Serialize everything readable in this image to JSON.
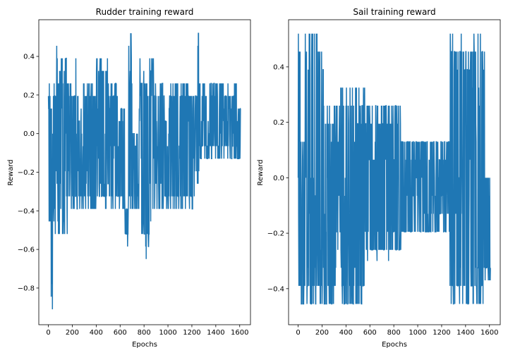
{
  "chart_data": [
    {
      "type": "line",
      "title": "Rudder training reward",
      "xlabel": "Epochs",
      "ylabel": "Reward",
      "xlim": [
        -80,
        1690
      ],
      "ylim": [
        -0.99,
        0.59
      ],
      "xticks": [
        0,
        200,
        400,
        600,
        800,
        1000,
        1200,
        1400,
        1600
      ],
      "yticks": [
        -0.8,
        -0.6,
        -0.4,
        -0.2,
        0.0,
        0.2,
        0.4
      ],
      "xtick_labels": [
        "0",
        "200",
        "400",
        "600",
        "800",
        "1000",
        "1200",
        "1400",
        "1600"
      ],
      "ytick_labels": [
        "−0.8",
        "−0.6",
        "−0.4",
        "−0.2",
        "0.0",
        "0.2",
        "0.4"
      ],
      "color": "#1f77b4",
      "segments": [
        {
          "x0": 0,
          "x1": 20,
          "min": -0.52,
          "max": 0.26
        },
        {
          "x0": 20,
          "x1": 40,
          "min": -0.92,
          "max": 0.13
        },
        {
          "x0": 40,
          "x1": 70,
          "min": -0.52,
          "max": 0.26
        },
        {
          "x0": 70,
          "x1": 80,
          "min": -0.39,
          "max": 0.52
        },
        {
          "x0": 80,
          "x1": 160,
          "min": -0.52,
          "max": 0.39
        },
        {
          "x0": 160,
          "x1": 230,
          "min": -0.39,
          "max": 0.26
        },
        {
          "x0": 230,
          "x1": 240,
          "min": -0.39,
          "max": 0.52
        },
        {
          "x0": 240,
          "x1": 400,
          "min": -0.39,
          "max": 0.26
        },
        {
          "x0": 400,
          "x1": 500,
          "min": -0.39,
          "max": 0.39
        },
        {
          "x0": 500,
          "x1": 590,
          "min": -0.39,
          "max": 0.26
        },
        {
          "x0": 590,
          "x1": 640,
          "min": -0.39,
          "max": 0.13
        },
        {
          "x0": 640,
          "x1": 660,
          "min": -0.52,
          "max": -0.39
        },
        {
          "x0": 660,
          "x1": 670,
          "min": -0.65,
          "max": -0.39
        },
        {
          "x0": 670,
          "x1": 700,
          "min": -0.39,
          "max": 0.52
        },
        {
          "x0": 700,
          "x1": 760,
          "min": -0.39,
          "max": 0.0
        },
        {
          "x0": 760,
          "x1": 800,
          "min": -0.52,
          "max": 0.39
        },
        {
          "x0": 800,
          "x1": 840,
          "min": -0.65,
          "max": 0.26
        },
        {
          "x0": 840,
          "x1": 880,
          "min": -0.52,
          "max": 0.39
        },
        {
          "x0": 880,
          "x1": 970,
          "min": -0.39,
          "max": 0.26
        },
        {
          "x0": 970,
          "x1": 1010,
          "min": -0.39,
          "max": 0.13
        },
        {
          "x0": 1010,
          "x1": 1100,
          "min": -0.39,
          "max": 0.26
        },
        {
          "x0": 1100,
          "x1": 1180,
          "min": -0.39,
          "max": 0.26
        },
        {
          "x0": 1180,
          "x1": 1250,
          "min": -0.39,
          "max": 0.26
        },
        {
          "x0": 1250,
          "x1": 1260,
          "min": -0.26,
          "max": 0.52
        },
        {
          "x0": 1260,
          "x1": 1550,
          "min": -0.13,
          "max": 0.26
        },
        {
          "x0": 1550,
          "x1": 1610,
          "min": -0.13,
          "max": 0.26
        }
      ]
    },
    {
      "type": "line",
      "title": "Sail training reward",
      "xlabel": "Epochs",
      "ylabel": "Reward",
      "xlim": [
        -80,
        1690
      ],
      "ylim": [
        -0.53,
        0.57
      ],
      "xticks": [
        0,
        200,
        400,
        600,
        800,
        1000,
        1200,
        1400,
        1600
      ],
      "yticks": [
        -0.4,
        -0.2,
        0.0,
        0.2,
        0.4
      ],
      "xtick_labels": [
        "0",
        "200",
        "400",
        "600",
        "800",
        "1000",
        "1200",
        "1400",
        "1600"
      ],
      "ytick_labels": [
        "−0.4",
        "−0.2",
        "0.0",
        "0.2",
        "0.4"
      ],
      "color": "#1f77b4",
      "segments": [
        {
          "x0": 0,
          "x1": 20,
          "min": -0.48,
          "max": 0.52
        },
        {
          "x0": 20,
          "x1": 60,
          "min": -0.48,
          "max": 0.15
        },
        {
          "x0": 60,
          "x1": 220,
          "min": -0.48,
          "max": 0.52
        },
        {
          "x0": 220,
          "x1": 320,
          "min": -0.48,
          "max": 0.26
        },
        {
          "x0": 320,
          "x1": 360,
          "min": -0.26,
          "max": 0.33
        },
        {
          "x0": 360,
          "x1": 560,
          "min": -0.48,
          "max": 0.33
        },
        {
          "x0": 560,
          "x1": 860,
          "min": -0.3,
          "max": 0.26
        },
        {
          "x0": 860,
          "x1": 1270,
          "min": -0.22,
          "max": 0.15
        },
        {
          "x0": 1270,
          "x1": 1460,
          "min": -0.48,
          "max": 0.52
        },
        {
          "x0": 1460,
          "x1": 1560,
          "min": -0.48,
          "max": 0.52
        },
        {
          "x0": 1560,
          "x1": 1610,
          "min": -0.37,
          "max": 0.04
        }
      ]
    }
  ]
}
